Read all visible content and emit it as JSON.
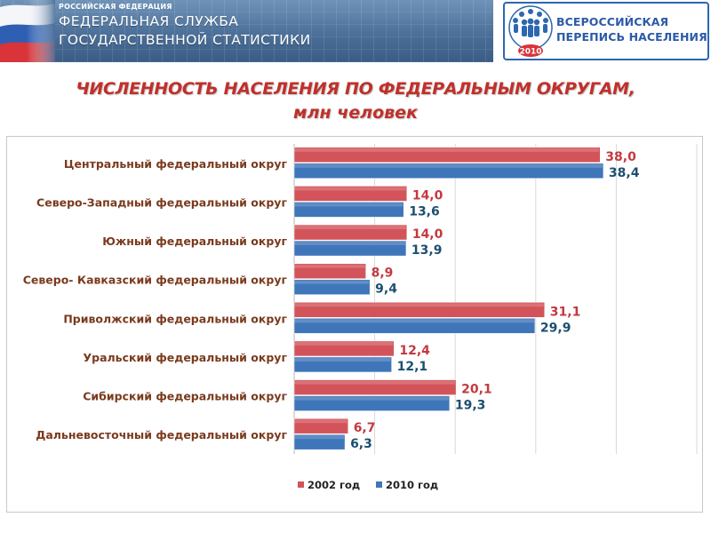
{
  "header": {
    "country_label": "РОССИЙСКАЯ ФЕДЕРАЦИЯ",
    "agency_line1": "ФЕДЕРАЛЬНАЯ СЛУЖБА",
    "agency_line2": "ГОСУДАРСТВЕННОЙ СТАТИСТИКИ"
  },
  "logo": {
    "line1": "ВСЕРОССИЙСКАЯ",
    "line2": "ПЕРЕПИСЬ НАСЕЛЕНИЯ",
    "year": "2010"
  },
  "chart_data": {
    "type": "bar",
    "orientation": "horizontal",
    "title": "ЧИСЛЕННОСТЬ НАСЕЛЕНИЯ ПО ФЕДЕРАЛЬНЫМ ОКРУГАМ,",
    "subtitle": "млн человек",
    "categories": [
      "Центральный федеральный округ",
      "Северо-Западный федеральный округ",
      "Южный федеральный округ",
      "Северо- Кавказский федеральный округ",
      "Приволжский федеральный округ",
      "Уральский федеральный округ",
      "Сибирский федеральный округ",
      "Дальневосточный федеральный округ"
    ],
    "series": [
      {
        "name": "2002 год",
        "color": "#d2545a",
        "label_color": "#c4393f",
        "values": [
          38.0,
          14.0,
          14.0,
          8.9,
          31.1,
          12.4,
          20.1,
          6.7
        ],
        "labels": [
          "38,0",
          "14,0",
          "14,0",
          "8,9",
          "31,1",
          "12,4",
          "20,1",
          "6,7"
        ]
      },
      {
        "name": "2010 год",
        "color": "#3f76b9",
        "label_color": "#1d4f6e",
        "values": [
          38.4,
          13.6,
          13.9,
          9.4,
          29.9,
          12.1,
          19.3,
          6.3
        ],
        "labels": [
          "38,4",
          "13,6",
          "13,9",
          "9,4",
          "29,9",
          "12,1",
          "19,3",
          "6,3"
        ]
      }
    ],
    "xlim": [
      0,
      50
    ],
    "grid": true,
    "legend": "bottom"
  }
}
